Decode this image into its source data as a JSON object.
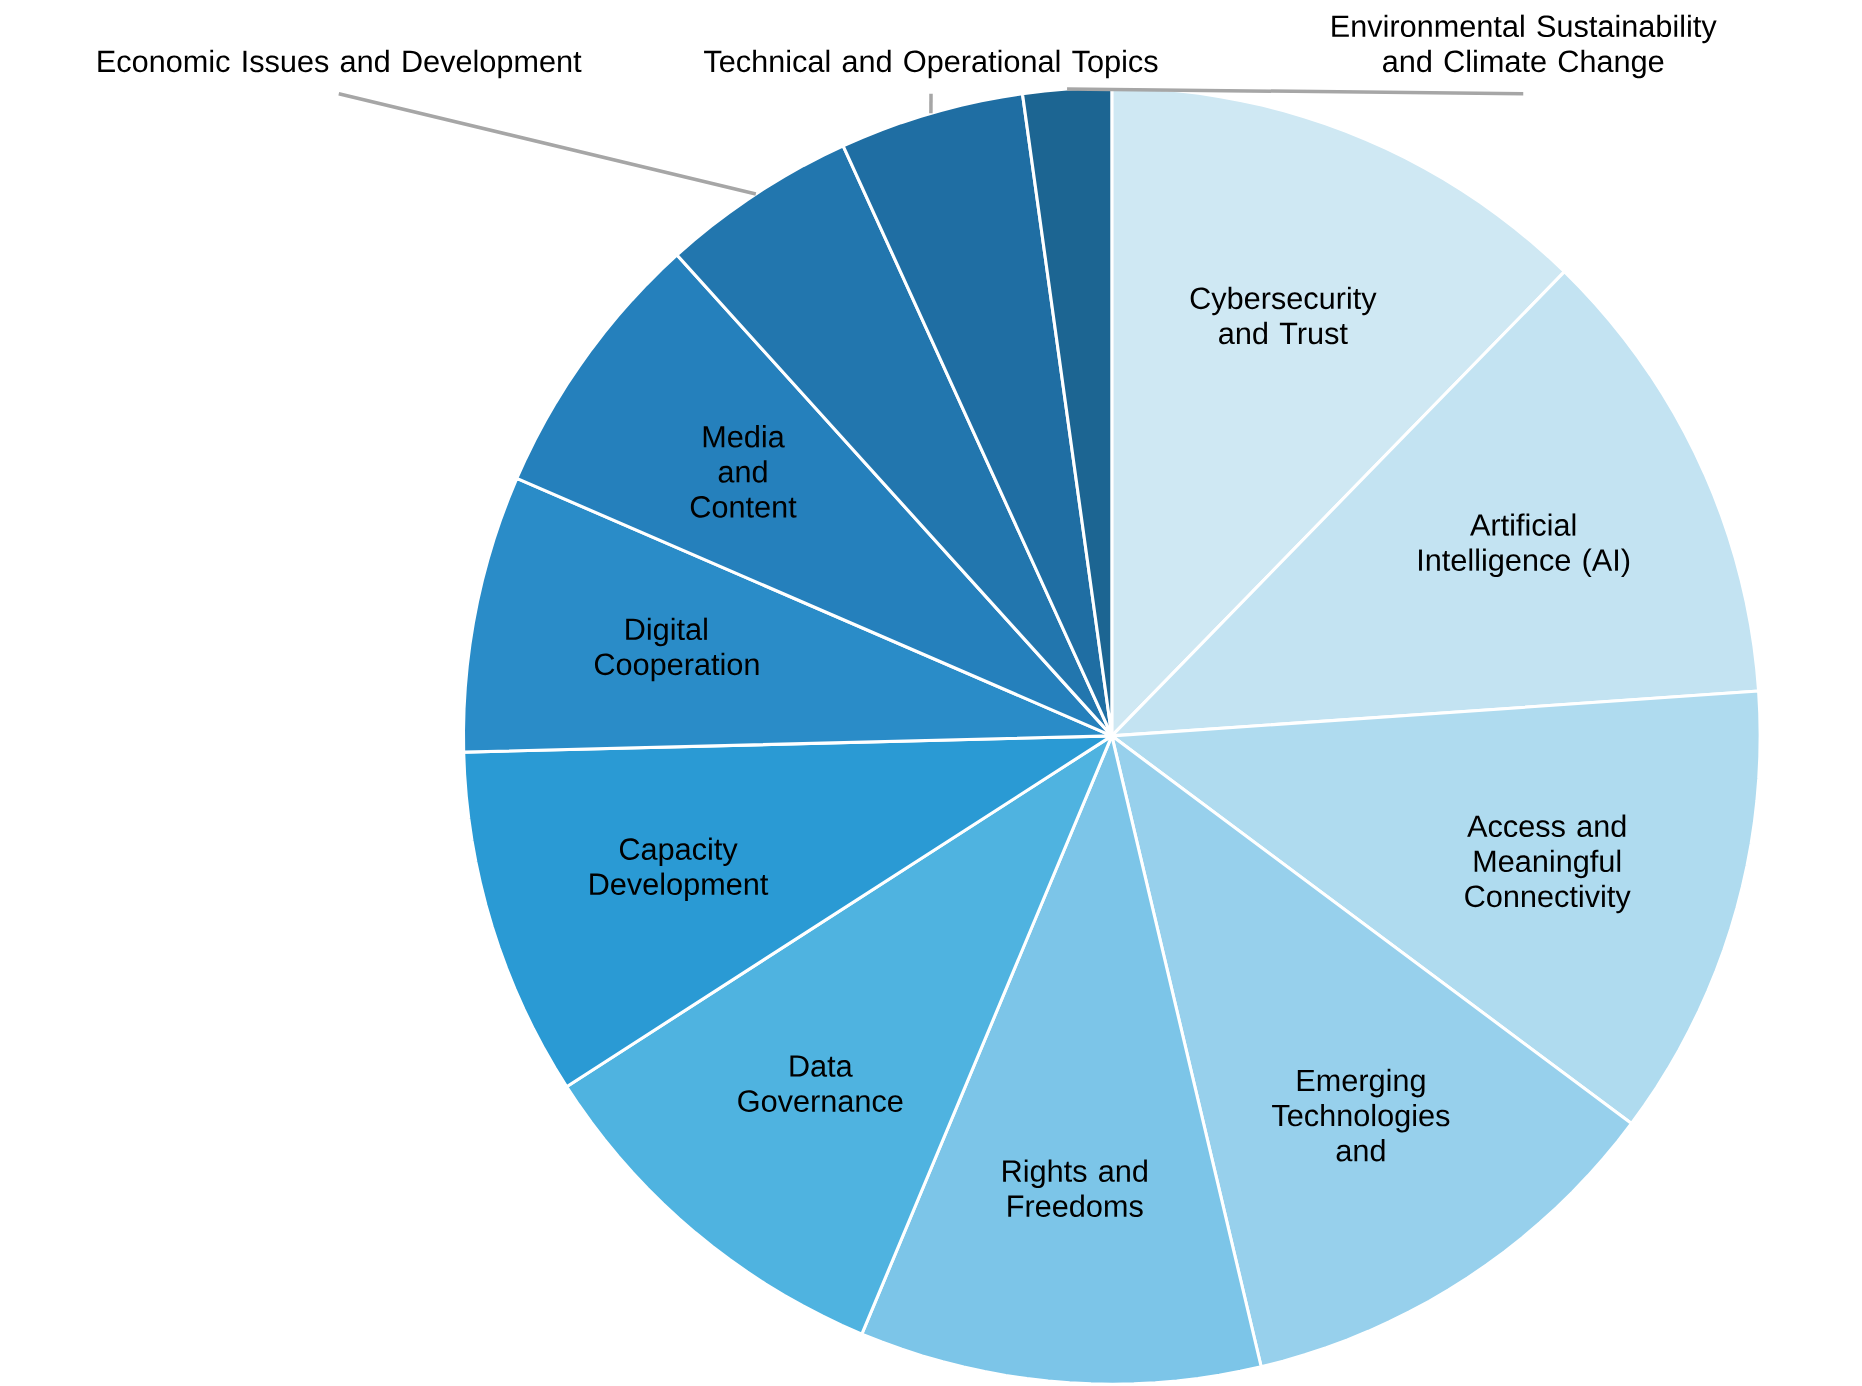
{
  "chart_data": {
    "type": "pie",
    "categories": [
      "Cybersecurity and Trust",
      "Artificial Intelligence (AI)",
      "Access and Meaningful Connectivity",
      "Emerging Technologies and",
      "Rights and Freedoms",
      "Data Governance",
      "Capacity Development",
      "Digital Cooperation",
      "Media and Content",
      "Economic Issues and Development",
      "Technical and Operational Topics",
      "Environmental Sustainability and Climate Change"
    ],
    "values": [
      12.3,
      11.6,
      11.3,
      11.1,
      10.0,
      9.6,
      8.7,
      6.9,
      6.8,
      4.9,
      4.6,
      2.2
    ],
    "colors": [
      "#cfe8f3",
      "#c3e3f2",
      "#afdbef",
      "#97d0ec",
      "#7cc5e8",
      "#4fb3e0",
      "#2a9ad4",
      "#2a8cc8",
      "#2580bc",
      "#2276ae",
      "#1f6ea3",
      "#1c6592"
    ]
  }
}
